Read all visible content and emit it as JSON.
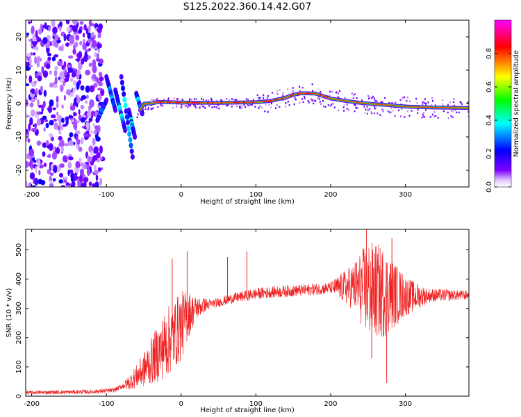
{
  "figure_title": "S125.2022.360.14.42.G07",
  "chart_data": [
    {
      "type": "heatmap",
      "xlabel": "Height of straight line (km)",
      "ylabel": "Frequency (Hz)",
      "xlim": [
        -208,
        385
      ],
      "ylim": [
        -25,
        25
      ],
      "xticks": [
        -200,
        -100,
        0,
        100,
        200,
        300
      ],
      "yticks": [
        -20,
        -10,
        0,
        10,
        20
      ],
      "colorbar": {
        "label": "Normalized spectral amplitude",
        "ticks": [
          0.0,
          0.2,
          0.4,
          0.6,
          0.8
        ],
        "range": [
          0,
          1
        ],
        "colormap": [
          "#ffffff",
          "#7f00ff",
          "#0000ff",
          "#00ffff",
          "#00ff00",
          "#ffff00",
          "#ff0000",
          "#ff00ff"
        ]
      },
      "ridge": {
        "x": [
          -110,
          -95,
          -80,
          -65,
          -50,
          -40,
          -30,
          0,
          50,
          100,
          120,
          140,
          150,
          160,
          180,
          200,
          220,
          240,
          260,
          280,
          300,
          340,
          385
        ],
        "y": [
          -3,
          4,
          3,
          -6,
          0,
          0,
          0.5,
          0.3,
          0.2,
          0.4,
          0.8,
          1.8,
          2.6,
          3.1,
          3.0,
          1.5,
          0.8,
          0.2,
          -0.2,
          -0.5,
          -0.9,
          -1.2,
          -1.3
        ]
      },
      "noise_region": {
        "x": [
          -208,
          -115
        ],
        "y": [
          -25,
          25
        ]
      }
    },
    {
      "type": "line",
      "xlabel": "Height of straight line (km)",
      "ylabel": "SNR (10 * v/v)",
      "xlim": [
        -208,
        385
      ],
      "ylim": [
        0,
        570
      ],
      "xticks": [
        -200,
        -100,
        0,
        100,
        200,
        300
      ],
      "yticks": [
        0,
        100,
        200,
        300,
        400,
        500
      ],
      "color": "#ee2222",
      "baseline": {
        "x": [
          -208,
          -120,
          -90,
          -70,
          -50,
          -30,
          -10,
          0,
          10,
          20,
          30,
          50,
          70,
          90,
          100,
          120,
          150,
          180,
          200,
          230,
          260,
          290,
          310,
          340,
          385
        ],
        "y": [
          12,
          15,
          20,
          45,
          90,
          150,
          210,
          240,
          280,
          300,
          310,
          320,
          335,
          345,
          350,
          355,
          360,
          365,
          370,
          375,
          360,
          345,
          340,
          345,
          345
        ]
      },
      "noise_amplitude": {
        "x": [
          -208,
          -80,
          -60,
          -40,
          -20,
          0,
          20,
          40,
          100,
          200,
          230,
          250,
          270,
          300,
          330,
          385
        ],
        "y": [
          6,
          8,
          40,
          80,
          120,
          120,
          40,
          15,
          20,
          20,
          80,
          170,
          160,
          70,
          25,
          15
        ]
      },
      "spikes": [
        {
          "x": 8,
          "y": 495
        },
        {
          "x": -12,
          "y": 470
        },
        {
          "x": 62,
          "y": 475
        },
        {
          "x": 88,
          "y": 495
        },
        {
          "x": 248,
          "y": 570
        },
        {
          "x": 282,
          "y": 540
        },
        {
          "x": 275,
          "y": 45
        },
        {
          "x": 255,
          "y": 130
        }
      ]
    }
  ]
}
